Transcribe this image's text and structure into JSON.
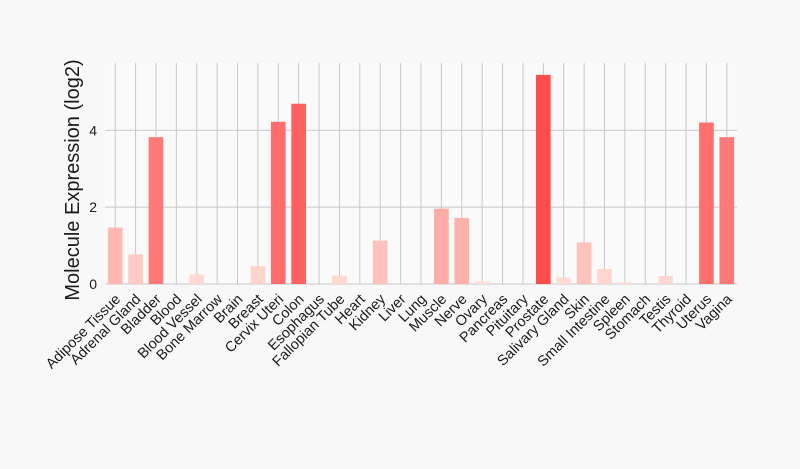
{
  "chart_data": {
    "type": "bar",
    "ylabel": "Molecule Expression (log2)",
    "xlabel": "",
    "ylim": [
      0,
      5.75
    ],
    "yticks": [
      0,
      2,
      4
    ],
    "grid": true,
    "categories": [
      "Adipose Tissue",
      "Adrenal Gland",
      "Bladder",
      "Blood",
      "Blood Vessel",
      "Bone Marrow",
      "Brain",
      "Breast",
      "Cervix Uteri",
      "Colon",
      "Esophagus",
      "Fallopian Tube",
      "Heart",
      "Kidney",
      "Liver",
      "Lung",
      "Muscle",
      "Nerve",
      "Ovary",
      "Pancreas",
      "Pituitary",
      "Prostate",
      "Salivary Gland",
      "Skin",
      "Small Intestine",
      "Spleen",
      "Stomach",
      "Testis",
      "Thyroid",
      "Uterus",
      "Vagina"
    ],
    "values": [
      1.47,
      0.77,
      3.82,
      0,
      0.25,
      0,
      0,
      0.46,
      4.22,
      4.69,
      0,
      0.22,
      0,
      1.13,
      0,
      0,
      1.96,
      1.72,
      0.07,
      0,
      0,
      5.44,
      0.17,
      1.08,
      0.39,
      0.05,
      0,
      0.21,
      0,
      4.2,
      3.82
    ],
    "colors": {
      "bar_max": "#ff4d4d",
      "bar_min": "#ffe0d8",
      "grid": "#c8c8c8",
      "plot_bg": "#fafafa"
    }
  }
}
